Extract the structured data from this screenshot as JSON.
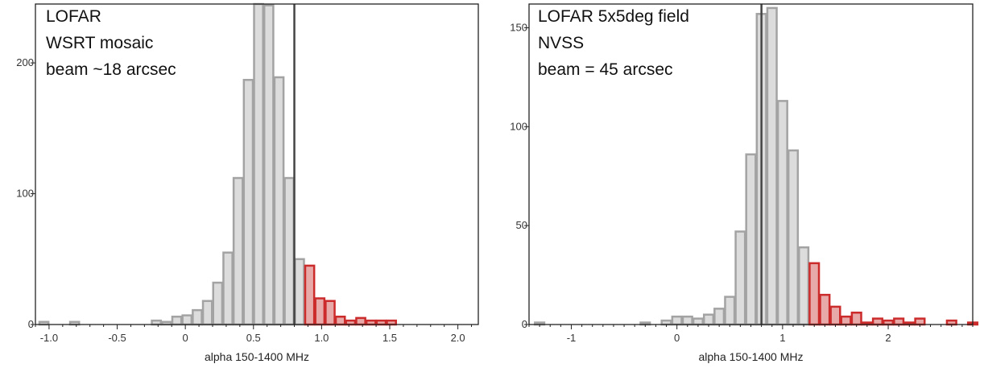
{
  "chart_data": [
    {
      "type": "bar",
      "xlabel": "alpha 150-1400 MHz",
      "ylabel": "",
      "annotations": [
        "LOFAR",
        "WSRT mosaic",
        "beam ~18 arcsec"
      ],
      "bin_width": 0.075,
      "xlim": [
        -1.1,
        2.15
      ],
      "ylim": [
        0,
        245
      ],
      "xticks": [
        -1.0,
        -0.5,
        0,
        0.5,
        1.0,
        1.5,
        2.0
      ],
      "xtick_labels": [
        "-1.0",
        "-0.5",
        "0",
        "0.5",
        "1.0",
        "1.5",
        "2.0"
      ],
      "yticks": [
        0,
        100,
        200
      ],
      "ytick_labels": [
        "0",
        "100",
        "200"
      ],
      "median": 0.8,
      "colors": {
        "normal_fill": "#dcdcdc",
        "normal_edge": "#a3a3a3",
        "highlight_fill": "#e8a9a9",
        "highlight_edge": "#cc2b2b"
      },
      "bins": [
        {
          "x": -1.075,
          "count": 2,
          "highlight": false
        },
        {
          "x": -0.85,
          "count": 2,
          "highlight": false
        },
        {
          "x": -0.25,
          "count": 3,
          "highlight": false
        },
        {
          "x": -0.175,
          "count": 2,
          "highlight": false
        },
        {
          "x": -0.1,
          "count": 6,
          "highlight": false
        },
        {
          "x": -0.025,
          "count": 7,
          "highlight": false
        },
        {
          "x": 0.05,
          "count": 11,
          "highlight": false
        },
        {
          "x": 0.125,
          "count": 18,
          "highlight": false
        },
        {
          "x": 0.2,
          "count": 32,
          "highlight": false
        },
        {
          "x": 0.275,
          "count": 55,
          "highlight": false
        },
        {
          "x": 0.35,
          "count": 112,
          "highlight": false
        },
        {
          "x": 0.425,
          "count": 187,
          "highlight": false
        },
        {
          "x": 0.5,
          "count": 245,
          "highlight": false
        },
        {
          "x": 0.575,
          "count": 244,
          "highlight": false
        },
        {
          "x": 0.65,
          "count": 189,
          "highlight": false
        },
        {
          "x": 0.725,
          "count": 112,
          "highlight": false
        },
        {
          "x": 0.8,
          "count": 50,
          "highlight": false
        },
        {
          "x": 0.875,
          "count": 45,
          "highlight": true
        },
        {
          "x": 0.95,
          "count": 20,
          "highlight": true
        },
        {
          "x": 1.025,
          "count": 18,
          "highlight": true
        },
        {
          "x": 1.1,
          "count": 6,
          "highlight": true
        },
        {
          "x": 1.175,
          "count": 3,
          "highlight": true
        },
        {
          "x": 1.25,
          "count": 5,
          "highlight": true
        },
        {
          "x": 1.325,
          "count": 3,
          "highlight": true
        },
        {
          "x": 1.4,
          "count": 3,
          "highlight": true
        },
        {
          "x": 1.475,
          "count": 3,
          "highlight": true
        }
      ]
    },
    {
      "type": "bar",
      "xlabel": "alpha 150-1400 MHz",
      "ylabel": "",
      "annotations": [
        "LOFAR 5x5deg field",
        "NVSS",
        "beam = 45 arcsec"
      ],
      "bin_width": 0.1,
      "xlim": [
        -1.4,
        2.8
      ],
      "ylim": [
        0,
        162
      ],
      "xticks": [
        -1,
        0,
        1,
        2
      ],
      "xtick_labels": [
        "-1",
        "0",
        "1",
        "2"
      ],
      "yticks": [
        0,
        50,
        100,
        150
      ],
      "ytick_labels": [
        "0",
        "50",
        "100",
        "150"
      ],
      "median": 0.8,
      "colors": {
        "normal_fill": "#dcdcdc",
        "normal_edge": "#a3a3a3",
        "highlight_fill": "#e8a9a9",
        "highlight_edge": "#cc2b2b"
      },
      "bins": [
        {
          "x": -1.35,
          "count": 1,
          "highlight": false
        },
        {
          "x": -0.35,
          "count": 1,
          "highlight": false
        },
        {
          "x": -0.15,
          "count": 2,
          "highlight": false
        },
        {
          "x": -0.05,
          "count": 4,
          "highlight": false
        },
        {
          "x": 0.05,
          "count": 4,
          "highlight": false
        },
        {
          "x": 0.15,
          "count": 3,
          "highlight": false
        },
        {
          "x": 0.25,
          "count": 5,
          "highlight": false
        },
        {
          "x": 0.35,
          "count": 8,
          "highlight": false
        },
        {
          "x": 0.45,
          "count": 14,
          "highlight": false
        },
        {
          "x": 0.55,
          "count": 47,
          "highlight": false
        },
        {
          "x": 0.65,
          "count": 86,
          "highlight": false
        },
        {
          "x": 0.75,
          "count": 157,
          "highlight": false
        },
        {
          "x": 0.85,
          "count": 160,
          "highlight": false
        },
        {
          "x": 0.95,
          "count": 113,
          "highlight": false
        },
        {
          "x": 1.05,
          "count": 88,
          "highlight": false
        },
        {
          "x": 1.15,
          "count": 39,
          "highlight": false
        },
        {
          "x": 1.25,
          "count": 31,
          "highlight": true
        },
        {
          "x": 1.35,
          "count": 15,
          "highlight": true
        },
        {
          "x": 1.45,
          "count": 9,
          "highlight": true
        },
        {
          "x": 1.55,
          "count": 4,
          "highlight": true
        },
        {
          "x": 1.65,
          "count": 6,
          "highlight": true
        },
        {
          "x": 1.75,
          "count": 1,
          "highlight": true
        },
        {
          "x": 1.85,
          "count": 3,
          "highlight": true
        },
        {
          "x": 1.95,
          "count": 2,
          "highlight": true
        },
        {
          "x": 2.05,
          "count": 3,
          "highlight": true
        },
        {
          "x": 2.15,
          "count": 1,
          "highlight": true
        },
        {
          "x": 2.25,
          "count": 3,
          "highlight": true
        },
        {
          "x": 2.55,
          "count": 2,
          "highlight": true
        },
        {
          "x": 2.75,
          "count": 1,
          "highlight": true
        }
      ]
    }
  ]
}
